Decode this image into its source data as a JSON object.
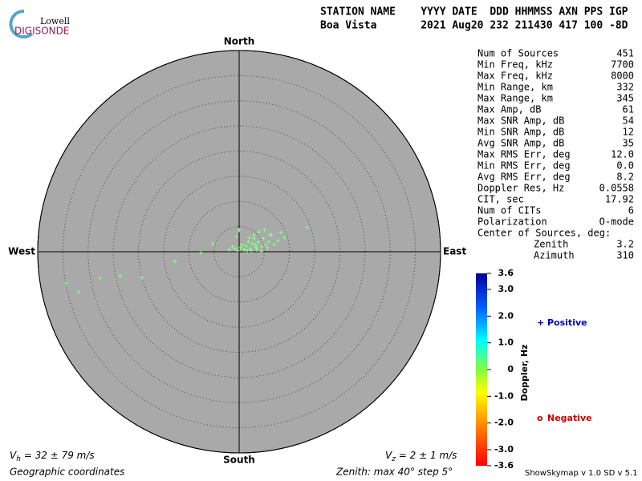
{
  "header": {
    "logo_top": "Lowell",
    "logo_bottom": "DIGISONDE",
    "columns": "STATION NAME    YYYY DATE  DDD HHMMSS AXN PPS IGP",
    "values": "Boa Vista       2021 Aug20 232 211430 417 100 -8D"
  },
  "stats": {
    "rows": [
      {
        "label": "Num of Sources",
        "value": "451"
      },
      {
        "label": "Min Freq, kHz",
        "value": "7700"
      },
      {
        "label": "Max Freq, kHz",
        "value": "8000"
      },
      {
        "label": "Min Range, km",
        "value": "332"
      },
      {
        "label": "Max Range, km",
        "value": "345"
      },
      {
        "label": "Max Amp, dB",
        "value": "61"
      },
      {
        "label": "Max SNR Amp, dB",
        "value": "54"
      },
      {
        "label": "Min SNR Amp, dB",
        "value": "12"
      },
      {
        "label": "Avg SNR Amp, dB",
        "value": "35"
      },
      {
        "label": "Max RMS Err, deg",
        "value": "12.0"
      },
      {
        "label": "Min RMS Err, deg",
        "value": "0.0"
      },
      {
        "label": "Avg RMS Err, deg",
        "value": "8.2"
      },
      {
        "label": "Doppler Res, Hz",
        "value": "0.0558"
      },
      {
        "label": "CIT, sec",
        "value": "17.92"
      },
      {
        "label": "Num of CITs",
        "value": "6"
      },
      {
        "label": "Polarization",
        "value": "O-mode"
      },
      {
        "label": "Center of Sources, deg:"
      },
      {
        "label": "Zenith",
        "value": "3.2",
        "indent": true
      },
      {
        "label": "Azimuth",
        "value": "310",
        "indent": true
      }
    ]
  },
  "chart_data": {
    "type": "skymap",
    "directions": {
      "north": "North",
      "south": "South",
      "east": "East",
      "west": "West"
    },
    "rlim": [
      0,
      40
    ],
    "rticks": [
      5,
      10,
      15,
      20,
      25,
      30,
      35,
      40
    ],
    "color": "#88ff88",
    "x": [
      -34.3,
      -31.9,
      -27.6,
      -23.6,
      -19.3,
      -12.8,
      -7.6,
      -5.2,
      13.5,
      8.3,
      9.0,
      7.7,
      6.4,
      5.9,
      5.3,
      4.8,
      4.5,
      3.8,
      3.4,
      3.0,
      2.6,
      2.2,
      1.8,
      1.4,
      1.0,
      0.6,
      0.3,
      -0.3,
      -0.8,
      -1.3,
      -2.0,
      2.9,
      4.0,
      5.0,
      6.1,
      7.0,
      3.5,
      2.4,
      1.6,
      4.4,
      5.6,
      0.0,
      -0.5,
      3.2,
      2.0
    ],
    "y": [
      -6.2,
      -8.0,
      -5.3,
      -4.8,
      -5.1,
      -1.9,
      -0.2,
      1.6,
      4.8,
      3.8,
      2.8,
      2.2,
      3.3,
      2.0,
      1.4,
      2.6,
      1.0,
      1.9,
      0.9,
      2.6,
      1.6,
      0.6,
      2.0,
      1.1,
      0.4,
      1.4,
      0.8,
      0.2,
      0.6,
      1.0,
      0.4,
      3.3,
      3.9,
      4.3,
      3.4,
      1.4,
      0.4,
      0.2,
      0.2,
      0.1,
      0.8,
      4.3,
      3.0,
      1.4,
      2.8
    ],
    "colorbar": {
      "label": "Doppler, Hz",
      "lim": [
        -3.6,
        3.6
      ],
      "ticks": [
        3.6,
        {
          "value": 3,
          "label": "3.0"
        },
        {
          "value": 2,
          "label": "2.0"
        },
        {
          "value": 1,
          "label": "1.0"
        },
        0,
        {
          "value": -1,
          "label": "-1.0"
        },
        {
          "value": -2,
          "label": "-2.0"
        },
        {
          "value": -3,
          "label": "-3.0"
        },
        -3.6
      ]
    },
    "legend": {
      "positive": "Positive",
      "positive_color": "#0000c0",
      "negative": "Negative",
      "negative_color": "#d00000"
    }
  },
  "footer": {
    "vh_symbol": "V",
    "vh_sub": "h",
    "vh_text": " = 32 ± 79 m/s",
    "vz_symbol": "V",
    "vz_sub": "z",
    "vz_text": " = 2 ± 1 m/s",
    "coords": "Geographic coordinates",
    "zenith": "Zenith: max 40°  step 5°",
    "version": "ShowSkymap v 1.0  SD v 5.1"
  }
}
